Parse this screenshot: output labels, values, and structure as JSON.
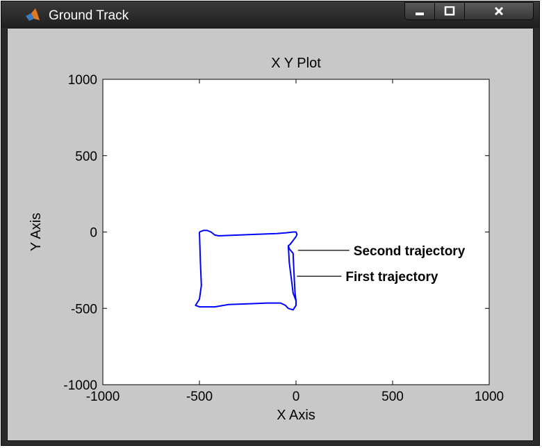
{
  "window": {
    "title": "Ground Track",
    "icons": {
      "app": "matlab-logo-icon",
      "minimize": "minimize-icon",
      "maximize": "maximize-icon",
      "close": "close-icon"
    }
  },
  "chart_data": {
    "type": "line",
    "title": "X Y Plot",
    "xlabel": "X Axis",
    "ylabel": "Y Axis",
    "xlim": [
      -1000,
      1000
    ],
    "ylim": [
      -1000,
      1000
    ],
    "xticks": [
      -1000,
      -500,
      0,
      500,
      1000
    ],
    "yticks": [
      1000,
      500,
      0,
      -500,
      -1000
    ],
    "grid": false,
    "series": [
      {
        "color": "#0000ff",
        "x": [
          -500,
          -480,
          -460,
          -440,
          -420,
          -400,
          -300,
          -200,
          -100,
          -50,
          -15,
          0,
          5,
          0,
          -30,
          -40,
          -35,
          -25,
          -15,
          0,
          0,
          -15,
          -40,
          -55,
          -80,
          -150,
          -250,
          -350,
          -420,
          -460,
          -500,
          -520,
          -500,
          -490,
          -495,
          -500
        ],
        "y": [
          0,
          10,
          10,
          0,
          -20,
          -25,
          -20,
          -15,
          -10,
          -5,
          0,
          0,
          -15,
          -30,
          -80,
          -90,
          -200,
          -300,
          -400,
          -450,
          -480,
          -510,
          -500,
          -480,
          -465,
          -465,
          -470,
          -475,
          -490,
          -490,
          -490,
          -480,
          -440,
          -350,
          -200,
          0
        ]
      },
      {
        "color": "#0000ff",
        "x": [
          -40,
          -35,
          -15,
          -10,
          -5,
          0
        ],
        "y": [
          -90,
          -110,
          -140,
          -280,
          -400,
          -450
        ]
      }
    ],
    "annotations": [
      {
        "label": "Second trajectory",
        "x": 10,
        "y": -120
      },
      {
        "label": "First trajectory",
        "x": 5,
        "y": -290
      }
    ]
  }
}
